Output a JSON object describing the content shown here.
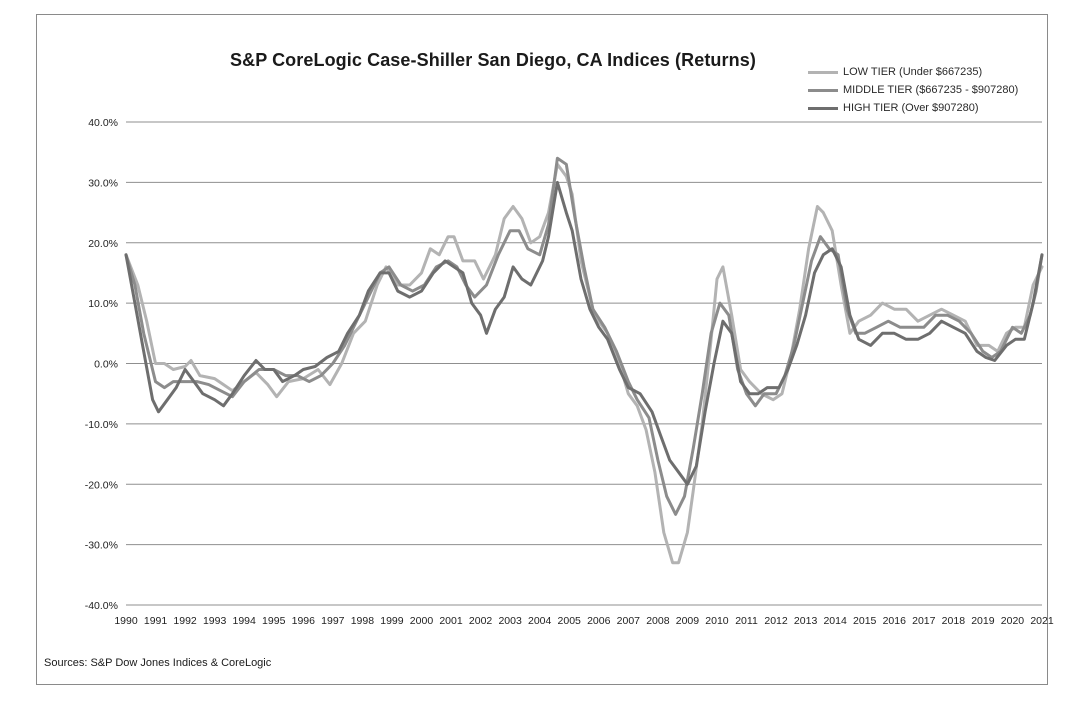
{
  "chart_data": {
    "type": "line",
    "title": "S&P CoreLogic Case-Shiller San Diego, CA Indices (Returns)",
    "xlabel": "",
    "ylabel": "",
    "xlim": [
      1990,
      2021
    ],
    "ylim": [
      -40,
      40
    ],
    "y_ticks": [
      40,
      30,
      20,
      10,
      0,
      -10,
      -20,
      -30,
      -40
    ],
    "y_tick_labels": [
      "40.0%",
      "30.0%",
      "20.0%",
      "10.0%",
      "0.0%",
      "-10.0%",
      "-20.0%",
      "-30.0%",
      "-40.0%"
    ],
    "x_tick_labels": [
      "1990",
      "1991",
      "1992",
      "1993",
      "1994",
      "1995",
      "1996",
      "1997",
      "1998",
      "1999",
      "2000",
      "2001",
      "2002",
      "2003",
      "2004",
      "2005",
      "2006",
      "2007",
      "2008",
      "2009",
      "2010",
      "2011",
      "2012",
      "2013",
      "2014",
      "2015",
      "2016",
      "2017",
      "2018",
      "2019",
      "2020",
      "2021"
    ],
    "grid": true,
    "legend_position": "top-right",
    "series": [
      {
        "name": "LOW TIER (Under $667235)",
        "color": "#b3b3b3",
        "points": [
          [
            1990,
            18
          ],
          [
            1990.4,
            13
          ],
          [
            1990.7,
            7
          ],
          [
            1991,
            0
          ],
          [
            1991.3,
            0
          ],
          [
            1991.6,
            -1
          ],
          [
            1992,
            -0.5
          ],
          [
            1992.2,
            0.5
          ],
          [
            1992.5,
            -2
          ],
          [
            1993,
            -2.5
          ],
          [
            1993.3,
            -3.5
          ],
          [
            1993.6,
            -4.5
          ],
          [
            1994,
            -3
          ],
          [
            1994.4,
            -1.5
          ],
          [
            1994.8,
            -3.5
          ],
          [
            1995.1,
            -5.5
          ],
          [
            1995.5,
            -3
          ],
          [
            1996,
            -2.5
          ],
          [
            1996.5,
            -1
          ],
          [
            1996.9,
            -3.5
          ],
          [
            1997.3,
            0
          ],
          [
            1997.7,
            5
          ],
          [
            1998.1,
            7
          ],
          [
            1998.5,
            13
          ],
          [
            1998.8,
            16
          ],
          [
            1999.2,
            13
          ],
          [
            1999.6,
            13
          ],
          [
            2000,
            15
          ],
          [
            2000.3,
            19
          ],
          [
            2000.6,
            18
          ],
          [
            2000.9,
            21
          ],
          [
            2001.1,
            21
          ],
          [
            2001.4,
            17
          ],
          [
            2001.8,
            17
          ],
          [
            2002.1,
            14
          ],
          [
            2002.5,
            18
          ],
          [
            2002.8,
            24
          ],
          [
            2003.1,
            26
          ],
          [
            2003.4,
            24
          ],
          [
            2003.7,
            20
          ],
          [
            2004,
            21
          ],
          [
            2004.3,
            25
          ],
          [
            2004.6,
            33
          ],
          [
            2004.9,
            31
          ],
          [
            2005.1,
            28
          ],
          [
            2005.4,
            17
          ],
          [
            2005.8,
            9
          ],
          [
            2006,
            7
          ],
          [
            2006.3,
            5
          ],
          [
            2006.7,
            0
          ],
          [
            2007,
            -5
          ],
          [
            2007.3,
            -7
          ],
          [
            2007.6,
            -11
          ],
          [
            2007.9,
            -18
          ],
          [
            2008.2,
            -28
          ],
          [
            2008.5,
            -33
          ],
          [
            2008.7,
            -33
          ],
          [
            2009,
            -28
          ],
          [
            2009.2,
            -21
          ],
          [
            2009.5,
            -10
          ],
          [
            2009.8,
            4
          ],
          [
            2010,
            14
          ],
          [
            2010.2,
            16
          ],
          [
            2010.5,
            8
          ],
          [
            2010.8,
            -1
          ],
          [
            2011.1,
            -3
          ],
          [
            2011.5,
            -5
          ],
          [
            2011.9,
            -6
          ],
          [
            2012.2,
            -5
          ],
          [
            2012.5,
            1
          ],
          [
            2012.8,
            9
          ],
          [
            2013.1,
            19
          ],
          [
            2013.4,
            26
          ],
          [
            2013.6,
            25
          ],
          [
            2013.9,
            22
          ],
          [
            2014.2,
            13
          ],
          [
            2014.5,
            5
          ],
          [
            2014.8,
            7
          ],
          [
            2015.2,
            8
          ],
          [
            2015.6,
            10
          ],
          [
            2016,
            9
          ],
          [
            2016.4,
            9
          ],
          [
            2016.8,
            7
          ],
          [
            2017.2,
            8
          ],
          [
            2017.6,
            9
          ],
          [
            2018,
            8
          ],
          [
            2018.4,
            7
          ],
          [
            2018.8,
            3
          ],
          [
            2019.2,
            3
          ],
          [
            2019.5,
            2
          ],
          [
            2019.8,
            5
          ],
          [
            2020.1,
            6
          ],
          [
            2020.4,
            6
          ],
          [
            2020.7,
            13
          ],
          [
            2021,
            16
          ]
        ]
      },
      {
        "name": "MIDDLE TIER ($667235 - $907280)",
        "color": "#8c8c8c",
        "points": [
          [
            1990,
            18
          ],
          [
            1990.3,
            13
          ],
          [
            1990.6,
            5
          ],
          [
            1991,
            -3
          ],
          [
            1991.3,
            -4
          ],
          [
            1991.6,
            -3
          ],
          [
            1992,
            -3
          ],
          [
            1992.4,
            -3
          ],
          [
            1992.8,
            -3.5
          ],
          [
            1993.2,
            -4.5
          ],
          [
            1993.6,
            -5.5
          ],
          [
            1994,
            -3
          ],
          [
            1994.5,
            -1
          ],
          [
            1995,
            -1
          ],
          [
            1995.4,
            -2
          ],
          [
            1995.8,
            -2
          ],
          [
            1996.2,
            -3
          ],
          [
            1996.6,
            -2
          ],
          [
            1997,
            0
          ],
          [
            1997.4,
            3
          ],
          [
            1997.8,
            7
          ],
          [
            1998.2,
            11
          ],
          [
            1998.6,
            15
          ],
          [
            1998.9,
            16
          ],
          [
            1999.3,
            13
          ],
          [
            1999.7,
            12
          ],
          [
            2000.1,
            13
          ],
          [
            2000.5,
            16
          ],
          [
            2000.9,
            17
          ],
          [
            2001.2,
            16
          ],
          [
            2001.5,
            13
          ],
          [
            2001.8,
            11
          ],
          [
            2002.2,
            13
          ],
          [
            2002.6,
            18
          ],
          [
            2003,
            22
          ],
          [
            2003.3,
            22
          ],
          [
            2003.6,
            19
          ],
          [
            2004,
            18
          ],
          [
            2004.3,
            23
          ],
          [
            2004.6,
            34
          ],
          [
            2004.9,
            33
          ],
          [
            2005.2,
            24
          ],
          [
            2005.5,
            16
          ],
          [
            2005.8,
            9
          ],
          [
            2006.2,
            6
          ],
          [
            2006.6,
            2
          ],
          [
            2007,
            -3
          ],
          [
            2007.3,
            -6
          ],
          [
            2007.7,
            -9
          ],
          [
            2008,
            -16
          ],
          [
            2008.3,
            -22
          ],
          [
            2008.6,
            -25
          ],
          [
            2008.9,
            -22
          ],
          [
            2009.2,
            -14
          ],
          [
            2009.5,
            -5
          ],
          [
            2009.8,
            5
          ],
          [
            2010.1,
            10
          ],
          [
            2010.4,
            8
          ],
          [
            2010.7,
            -1
          ],
          [
            2011,
            -5
          ],
          [
            2011.3,
            -7
          ],
          [
            2011.6,
            -5
          ],
          [
            2012,
            -5
          ],
          [
            2012.3,
            -2
          ],
          [
            2012.6,
            3
          ],
          [
            2012.9,
            10
          ],
          [
            2013.2,
            17
          ],
          [
            2013.5,
            21
          ],
          [
            2013.8,
            19
          ],
          [
            2014.1,
            18
          ],
          [
            2014.4,
            9
          ],
          [
            2014.7,
            5
          ],
          [
            2015,
            5
          ],
          [
            2015.4,
            6
          ],
          [
            2015.8,
            7
          ],
          [
            2016.2,
            6
          ],
          [
            2016.6,
            6
          ],
          [
            2017,
            6
          ],
          [
            2017.4,
            8
          ],
          [
            2017.8,
            8
          ],
          [
            2018.2,
            7
          ],
          [
            2018.6,
            5
          ],
          [
            2019,
            2
          ],
          [
            2019.3,
            1
          ],
          [
            2019.6,
            2
          ],
          [
            2020,
            6
          ],
          [
            2020.3,
            5
          ],
          [
            2020.6,
            8
          ],
          [
            2020.8,
            12
          ],
          [
            2021,
            18
          ]
        ]
      },
      {
        "name": "HIGH TIER (Over $907280)",
        "color": "#6e6e6e",
        "points": [
          [
            1990,
            18
          ],
          [
            1990.3,
            10
          ],
          [
            1990.6,
            2
          ],
          [
            1990.9,
            -6
          ],
          [
            1991.1,
            -8
          ],
          [
            1991.4,
            -6
          ],
          [
            1991.7,
            -4
          ],
          [
            1992,
            -1
          ],
          [
            1992.3,
            -3
          ],
          [
            1992.6,
            -5
          ],
          [
            1993,
            -6
          ],
          [
            1993.3,
            -7
          ],
          [
            1993.6,
            -5
          ],
          [
            1994,
            -2
          ],
          [
            1994.4,
            0.5
          ],
          [
            1994.7,
            -1
          ],
          [
            1995,
            -1
          ],
          [
            1995.3,
            -3
          ],
          [
            1995.7,
            -2
          ],
          [
            1996,
            -1
          ],
          [
            1996.4,
            -0.5
          ],
          [
            1996.8,
            1
          ],
          [
            1997.2,
            2
          ],
          [
            1997.5,
            5
          ],
          [
            1997.9,
            8
          ],
          [
            1998.2,
            12
          ],
          [
            1998.6,
            15
          ],
          [
            1998.9,
            15
          ],
          [
            1999.2,
            12
          ],
          [
            1999.6,
            11
          ],
          [
            2000,
            12
          ],
          [
            2000.4,
            15
          ],
          [
            2000.8,
            17
          ],
          [
            2001.1,
            16
          ],
          [
            2001.4,
            15
          ],
          [
            2001.7,
            10
          ],
          [
            2002,
            8
          ],
          [
            2002.2,
            5
          ],
          [
            2002.5,
            9
          ],
          [
            2002.8,
            11
          ],
          [
            2003.1,
            16
          ],
          [
            2003.4,
            14
          ],
          [
            2003.7,
            13
          ],
          [
            2004.1,
            17
          ],
          [
            2004.3,
            21
          ],
          [
            2004.6,
            30
          ],
          [
            2004.9,
            25
          ],
          [
            2005.1,
            22
          ],
          [
            2005.4,
            14
          ],
          [
            2005.7,
            9
          ],
          [
            2006,
            6
          ],
          [
            2006.3,
            4
          ],
          [
            2006.7,
            -1
          ],
          [
            2007,
            -4
          ],
          [
            2007.4,
            -5
          ],
          [
            2007.8,
            -8
          ],
          [
            2008.1,
            -12
          ],
          [
            2008.4,
            -16
          ],
          [
            2008.7,
            -18
          ],
          [
            2009,
            -20
          ],
          [
            2009.3,
            -17
          ],
          [
            2009.6,
            -8
          ],
          [
            2009.9,
            0
          ],
          [
            2010.2,
            7
          ],
          [
            2010.5,
            5
          ],
          [
            2010.8,
            -3
          ],
          [
            2011.1,
            -5
          ],
          [
            2011.4,
            -5
          ],
          [
            2011.7,
            -4
          ],
          [
            2012.1,
            -4
          ],
          [
            2012.4,
            -1
          ],
          [
            2012.7,
            3
          ],
          [
            2013,
            8
          ],
          [
            2013.3,
            15
          ],
          [
            2013.6,
            18
          ],
          [
            2013.9,
            19
          ],
          [
            2014.2,
            16
          ],
          [
            2014.5,
            8
          ],
          [
            2014.8,
            4
          ],
          [
            2015.2,
            3
          ],
          [
            2015.6,
            5
          ],
          [
            2016,
            5
          ],
          [
            2016.4,
            4
          ],
          [
            2016.8,
            4
          ],
          [
            2017.2,
            5
          ],
          [
            2017.6,
            7
          ],
          [
            2018,
            6
          ],
          [
            2018.4,
            5
          ],
          [
            2018.8,
            2
          ],
          [
            2019.1,
            1
          ],
          [
            2019.4,
            0.5
          ],
          [
            2019.8,
            3
          ],
          [
            2020.1,
            4
          ],
          [
            2020.4,
            4
          ],
          [
            2020.7,
            10
          ],
          [
            2021,
            18
          ]
        ]
      }
    ]
  },
  "source_text": "Sources: S&P Dow Jones Indices & CoreLogic"
}
